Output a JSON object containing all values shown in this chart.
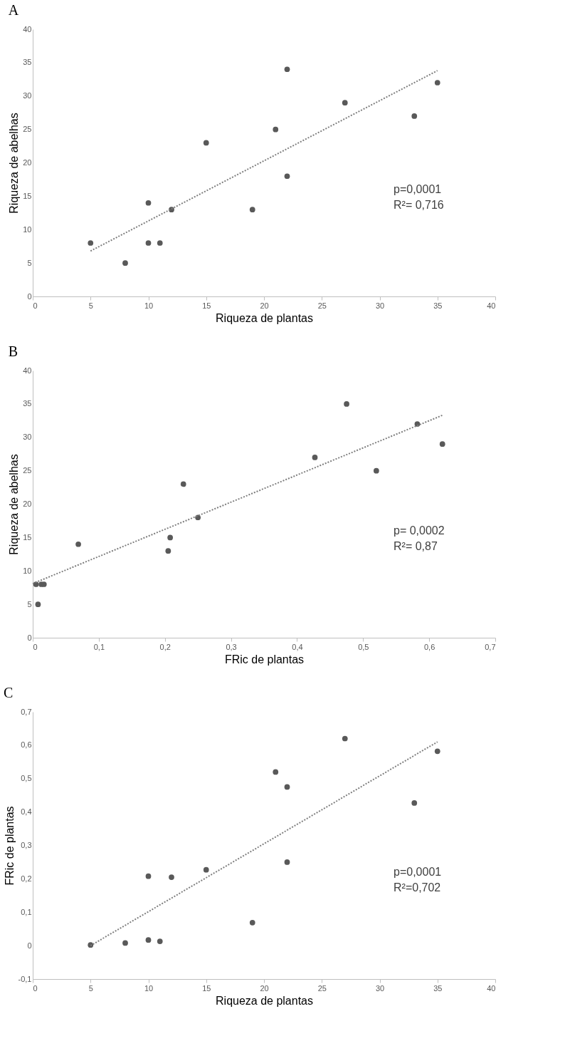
{
  "chart_data": [
    {
      "type": "scatter",
      "title": "A",
      "xlabel": "Riqueza de plantas",
      "ylabel": "Riqueza de abelhas",
      "xlim": [
        0,
        40
      ],
      "xticks": [
        0,
        5,
        10,
        15,
        20,
        25,
        30,
        35,
        40
      ],
      "ylim": [
        0,
        40
      ],
      "yticks": [
        0,
        5,
        10,
        15,
        20,
        25,
        30,
        35,
        40
      ],
      "grid": false,
      "annotations": [
        "p=0,0001",
        "R²= 0,716"
      ],
      "series": [
        {
          "marker": "circle",
          "color": "#595959",
          "x": [
            5,
            8,
            10,
            10,
            11,
            12,
            15,
            19,
            21,
            22,
            22,
            27,
            33,
            35
          ],
          "values": [
            8,
            5,
            14,
            8,
            8,
            13,
            23,
            13,
            25,
            34,
            18,
            29,
            27,
            32
          ]
        },
        {
          "type": "line",
          "line_style": "dotted",
          "color": "#7f7f7f",
          "x": [
            5,
            35
          ],
          "values": [
            6.8,
            33.8
          ]
        }
      ]
    },
    {
      "type": "scatter",
      "title": "B",
      "xlabel": "FRic de plantas",
      "ylabel": "Riqueza de abelhas",
      "xlim": [
        0,
        0.7
      ],
      "xticks": [
        0,
        {
          "value": 0.1,
          "label": "0,1"
        },
        {
          "value": 0.2,
          "label": "0,2"
        },
        {
          "value": 0.3,
          "label": "0,3"
        },
        {
          "value": 0.4,
          "label": "0,4"
        },
        {
          "value": 0.5,
          "label": "0,5"
        },
        {
          "value": 0.6,
          "label": "0,6"
        },
        {
          "value": 0.7,
          "label": "0,7"
        }
      ],
      "ylim": [
        0,
        40
      ],
      "yticks": [
        0,
        5,
        10,
        15,
        20,
        25,
        30,
        35,
        40
      ],
      "grid": false,
      "annotations": [
        "p= 0,0002",
        "R²= 0,87"
      ],
      "series": [
        {
          "marker": "circle",
          "color": "#595959",
          "x": [
            0.005,
            0.008,
            0.013,
            0.017,
            0.069,
            0.205,
            0.208,
            0.228,
            0.25,
            0.427,
            0.475,
            0.52,
            0.582,
            0.62
          ],
          "values": [
            8,
            5,
            8,
            8,
            14,
            13,
            15,
            23,
            18,
            27,
            35,
            25,
            32,
            29
          ]
        },
        {
          "type": "line",
          "line_style": "dotted",
          "color": "#7f7f7f",
          "x": [
            0,
            0.62
          ],
          "values": [
            8.1,
            33.3
          ]
        }
      ]
    },
    {
      "type": "scatter",
      "title": "C",
      "xlabel": "Riqueza de plantas",
      "ylabel": "FRic de plantas",
      "xlim": [
        0,
        40
      ],
      "xticks": [
        0,
        5,
        10,
        15,
        20,
        25,
        30,
        35,
        40
      ],
      "ylim": [
        -0.1,
        0.7
      ],
      "yticks": [
        {
          "value": -0.1,
          "label": "-0,1"
        },
        0,
        {
          "value": 0.1,
          "label": "0,1"
        },
        {
          "value": 0.2,
          "label": "0,2"
        },
        {
          "value": 0.3,
          "label": "0,3"
        },
        {
          "value": 0.4,
          "label": "0,4"
        },
        {
          "value": 0.5,
          "label": "0,5"
        },
        {
          "value": 0.6,
          "label": "0,6"
        },
        {
          "value": 0.7,
          "label": "0,7"
        }
      ],
      "grid": false,
      "annotations": [
        "p=0,0001",
        "R²=0,702"
      ],
      "series": [
        {
          "marker": "circle",
          "color": "#595959",
          "x": [
            5,
            8,
            10,
            10,
            11,
            12,
            15,
            19,
            21,
            22,
            22,
            27,
            33,
            35
          ],
          "values": [
            0.002,
            0.008,
            0.017,
            0.208,
            0.013,
            0.205,
            0.227,
            0.069,
            0.52,
            0.475,
            0.25,
            0.62,
            0.427,
            0.582
          ]
        },
        {
          "type": "line",
          "line_style": "dotted",
          "color": "#7f7f7f",
          "x": [
            5,
            35
          ],
          "values": [
            0,
            0.61
          ]
        }
      ]
    }
  ]
}
